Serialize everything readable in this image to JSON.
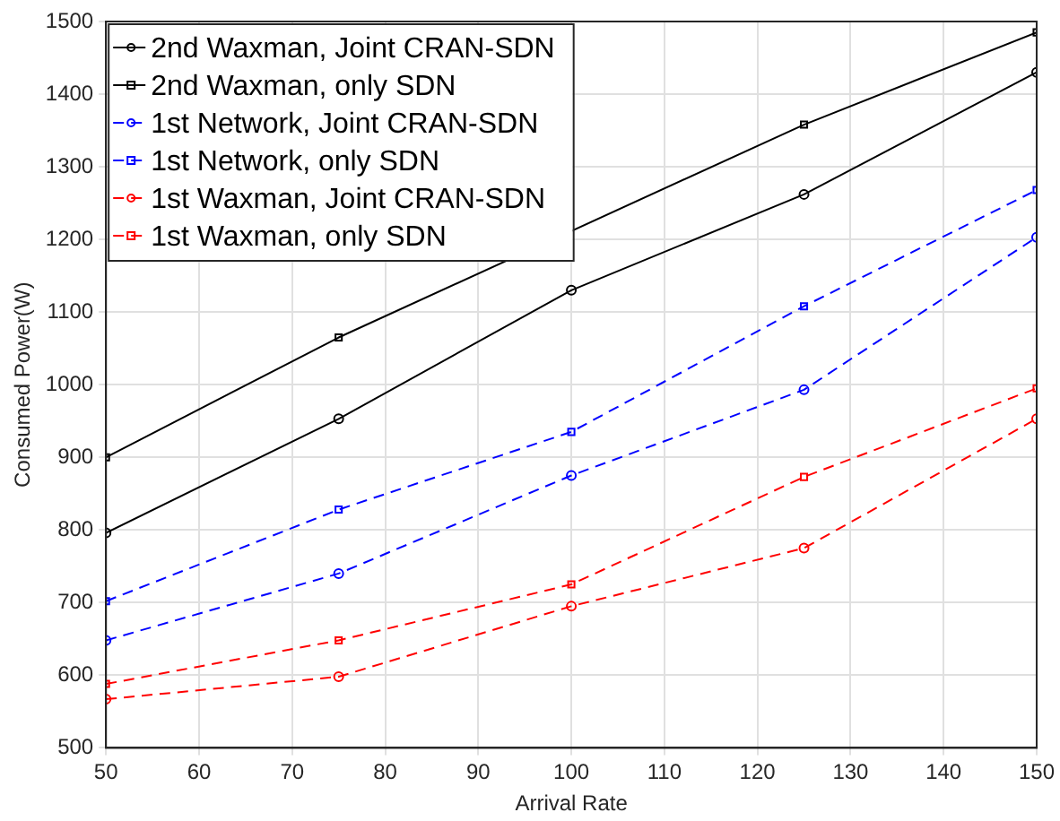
{
  "chart_data": {
    "type": "line",
    "xlabel": "Arrival Rate",
    "ylabel": "Consumed Power(W)",
    "x": [
      50,
      75,
      100,
      125,
      150
    ],
    "xlim": [
      50,
      150
    ],
    "xticks": [
      50,
      60,
      70,
      80,
      90,
      100,
      110,
      120,
      130,
      140,
      150
    ],
    "ylim": [
      500,
      1500
    ],
    "yticks": [
      500,
      600,
      700,
      800,
      900,
      1000,
      1100,
      1200,
      1300,
      1400,
      1500
    ],
    "grid": true,
    "legend": "top left",
    "series": [
      {
        "name": "2nd Waxman, Joint CRAN-SDN",
        "color": "#000000",
        "marker": "circle",
        "line_style": "solid",
        "values": [
          796,
          953,
          1130,
          1262,
          1430
        ]
      },
      {
        "name": "2nd Waxman, only SDN",
        "color": "#000000",
        "marker": "square",
        "line_style": "solid",
        "values": [
          900,
          1065,
          null,
          1358,
          1485
        ]
      },
      {
        "name": "1st Network, Joint CRAN-SDN",
        "color": "#0000ff",
        "marker": "circle",
        "line_style": "dashed",
        "values": [
          648,
          740,
          875,
          993,
          1203
        ]
      },
      {
        "name": "1st Network, only SDN",
        "color": "#0000ff",
        "marker": "square",
        "line_style": "dashed",
        "values": [
          702,
          828,
          935,
          1108,
          1268
        ]
      },
      {
        "name": "1st Waxman, Joint CRAN-SDN",
        "color": "#ff0000",
        "marker": "circle",
        "line_style": "dashed",
        "values": [
          567,
          598,
          695,
          775,
          953
        ]
      },
      {
        "name": "1st Waxman, only SDN",
        "color": "#ff0000",
        "marker": "square",
        "line_style": "dashed",
        "values": [
          588,
          648,
          725,
          873,
          995
        ]
      }
    ]
  }
}
